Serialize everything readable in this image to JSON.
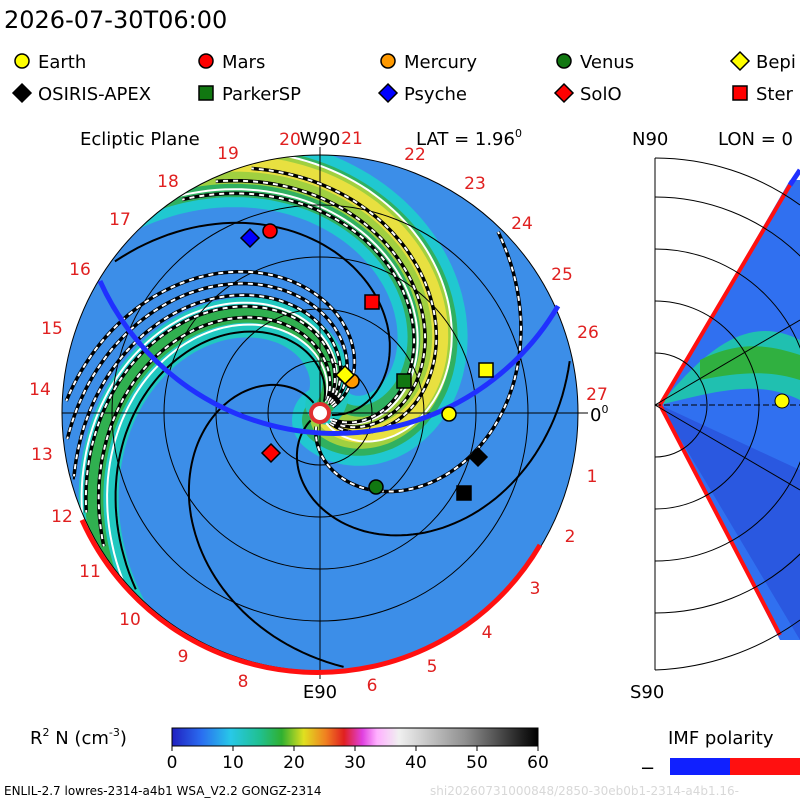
{
  "header": {
    "timestamp": "2026-07-30T06:00"
  },
  "legend": [
    {
      "name": "Earth",
      "shape": "circle",
      "color": "#ffff00"
    },
    {
      "name": "Mars",
      "shape": "circle",
      "color": "#ff0000"
    },
    {
      "name": "Mercury",
      "shape": "circle",
      "color": "#ff9900"
    },
    {
      "name": "Venus",
      "shape": "circle",
      "color": "#117711"
    },
    {
      "name": "Bepi",
      "shape": "diamond",
      "color": "#ffff00"
    },
    {
      "name": "OSIRIS-APEX",
      "shape": "diamond",
      "color": "#000000"
    },
    {
      "name": "ParkerSP",
      "shape": "square",
      "color": "#117711"
    },
    {
      "name": "Psyche",
      "shape": "diamond",
      "color": "#0000ff"
    },
    {
      "name": "SolO",
      "shape": "diamond",
      "color": "#ff0000"
    },
    {
      "name": "Ster",
      "shape": "square",
      "color": "#ff0000"
    }
  ],
  "ecliptic_panel": {
    "title": "Ecliptic Plane",
    "top_label": "W90",
    "lat_label": "LAT = 1.96",
    "lat_unit": "0",
    "bottom_label": "E90",
    "right_label": "0",
    "right_unit": "0",
    "sectors": [
      "20",
      "21",
      "22",
      "23",
      "24",
      "25",
      "26",
      "27",
      "1",
      "2",
      "3",
      "4",
      "5",
      "6",
      "8",
      "9",
      "10",
      "11",
      "12",
      "13",
      "14",
      "15",
      "16",
      "17",
      "18",
      "19"
    ]
  },
  "meridional_panel": {
    "top_label": "N90",
    "lon_label": "LON = 0",
    "bottom_label": "S90"
  },
  "colorbar": {
    "label": "R",
    "label_sup": "2",
    "label_rest": " N (cm",
    "label_sup2": "-3",
    "label_end": ")",
    "range": [
      0,
      60
    ],
    "ticks": [
      0,
      10,
      20,
      30,
      40,
      50,
      60
    ]
  },
  "imf": {
    "label": "IMF polarity",
    "minus": "−"
  },
  "footer": {
    "text": "ENLIL-2.7 lowres-2314-a4b1 WSA_V2.2 GONGZ-2314",
    "faint": "shi20260731000848/2850-30eb0b1-2314-a4b1.16-"
  }
}
